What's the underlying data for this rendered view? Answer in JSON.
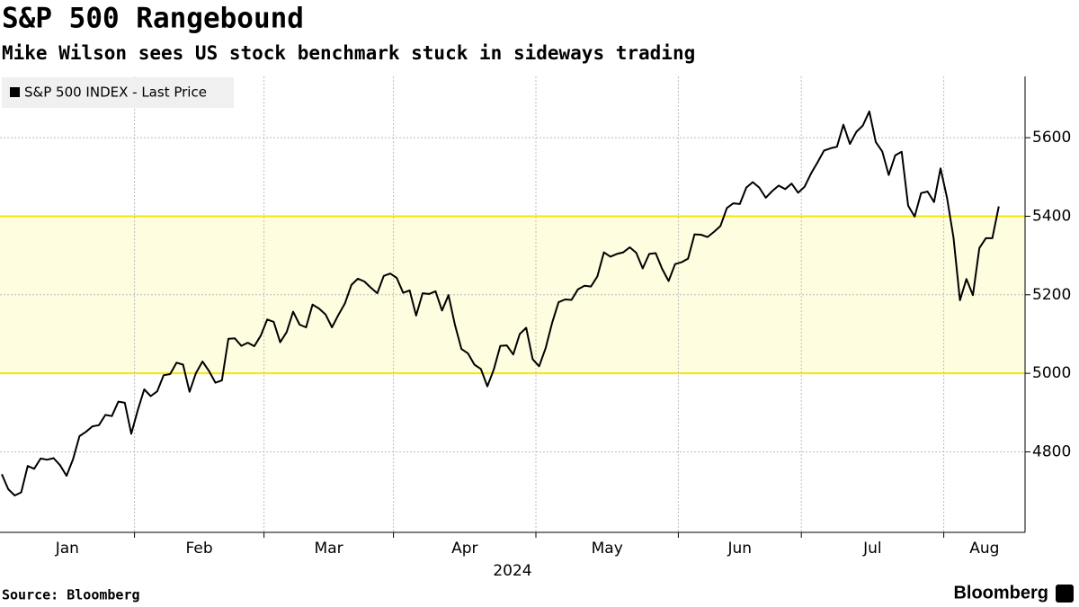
{
  "chart_data": {
    "type": "line",
    "title": "S&P 500 Rangebound",
    "subtitle": "Mike Wilson sees US stock benchmark stuck in sideways trading",
    "x_label": "2024",
    "source": "Source: Bloomberg",
    "brand": "Bloomberg",
    "x": [
      "Jan",
      "Jan",
      "Jan",
      "Jan",
      "Jan",
      "Jan",
      "Jan",
      "Jan",
      "Jan",
      "Jan",
      "Jan",
      "Jan",
      "Jan",
      "Jan",
      "Jan",
      "Jan",
      "Jan",
      "Jan",
      "Jan",
      "Jan",
      "Jan",
      "Feb",
      "Feb",
      "Feb",
      "Feb",
      "Feb",
      "Feb",
      "Feb",
      "Feb",
      "Feb",
      "Feb",
      "Feb",
      "Feb",
      "Feb",
      "Feb",
      "Feb",
      "Feb",
      "Feb",
      "Feb",
      "Feb",
      "Feb",
      "Mar",
      "Mar",
      "Mar",
      "Mar",
      "Mar",
      "Mar",
      "Mar",
      "Mar",
      "Mar",
      "Mar",
      "Mar",
      "Mar",
      "Mar",
      "Mar",
      "Mar",
      "Mar",
      "Mar",
      "Mar",
      "Mar",
      "Mar",
      "Apr",
      "Apr",
      "Apr",
      "Apr",
      "Apr",
      "Apr",
      "Apr",
      "Apr",
      "Apr",
      "Apr",
      "Apr",
      "Apr",
      "Apr",
      "Apr",
      "Apr",
      "Apr",
      "Apr",
      "Apr",
      "Apr",
      "Apr",
      "Apr",
      "Apr",
      "May",
      "May",
      "May",
      "May",
      "May",
      "May",
      "May",
      "May",
      "May",
      "May",
      "May",
      "May",
      "May",
      "May",
      "May",
      "May",
      "May",
      "May",
      "May",
      "May",
      "May",
      "May",
      "Jun",
      "Jun",
      "Jun",
      "Jun",
      "Jun",
      "Jun",
      "Jun",
      "Jun",
      "Jun",
      "Jun",
      "Jun",
      "Jun",
      "Jun",
      "Jun",
      "Jun",
      "Jun",
      "Jun",
      "Jun",
      "Jun",
      "Jul",
      "Jul",
      "Jul",
      "Jul",
      "Jul",
      "Jul",
      "Jul",
      "Jul",
      "Jul",
      "Jul",
      "Jul",
      "Jul",
      "Jul",
      "Jul",
      "Jul",
      "Jul",
      "Jul",
      "Jul",
      "Jul",
      "Jul",
      "Jul",
      "Jul",
      "Aug",
      "Aug",
      "Aug",
      "Aug",
      "Aug",
      "Aug",
      "Aug",
      "Aug",
      "Aug"
    ],
    "series": [
      {
        "name": "S&P 500 INDEX - Last Price",
        "color": "#000000",
        "values": [
          4743,
          4705,
          4689,
          4697,
          4764,
          4757,
          4783,
          4780,
          4784,
          4766,
          4739,
          4781,
          4840,
          4851,
          4865,
          4868,
          4894,
          4891,
          4928,
          4925,
          4846,
          4906,
          4959,
          4942,
          4954,
          4995,
          4998,
          5027,
          5022,
          4953,
          5001,
          5030,
          5006,
          4976,
          4982,
          5088,
          5089,
          5070,
          5078,
          5069,
          5096,
          5137,
          5131,
          5079,
          5105,
          5157,
          5124,
          5117,
          5175,
          5165,
          5150,
          5117,
          5149,
          5178,
          5225,
          5241,
          5234,
          5218,
          5204,
          5248,
          5254,
          5243,
          5205,
          5211,
          5147,
          5204,
          5202,
          5209,
          5160,
          5199,
          5123,
          5062,
          5051,
          5022,
          5011,
          4967,
          5010,
          5070,
          5071,
          5048,
          5100,
          5116,
          5036,
          5018,
          5064,
          5128,
          5181,
          5188,
          5187,
          5214,
          5223,
          5221,
          5247,
          5308,
          5297,
          5304,
          5308,
          5321,
          5307,
          5267,
          5304,
          5306,
          5266,
          5235,
          5278,
          5283,
          5292,
          5354,
          5353,
          5347,
          5360,
          5375,
          5421,
          5433,
          5431,
          5473,
          5487,
          5473,
          5447,
          5464,
          5478,
          5469,
          5483,
          5460,
          5475,
          5509,
          5537,
          5567,
          5573,
          5577,
          5633,
          5584,
          5615,
          5631,
          5667,
          5589,
          5565,
          5505,
          5555,
          5564,
          5427,
          5399,
          5459,
          5463,
          5436,
          5522,
          5447,
          5346,
          5186,
          5240,
          5199,
          5319,
          5344,
          5344,
          5425
        ]
      }
    ],
    "band": [
      5000,
      5400
    ],
    "band_color": "#fffde0",
    "band_line_color": "#f5e600",
    "ylim": [
      4595,
      5756
    ],
    "yticks": [
      4800,
      5000,
      5200,
      5400,
      5600
    ],
    "grid": true
  }
}
